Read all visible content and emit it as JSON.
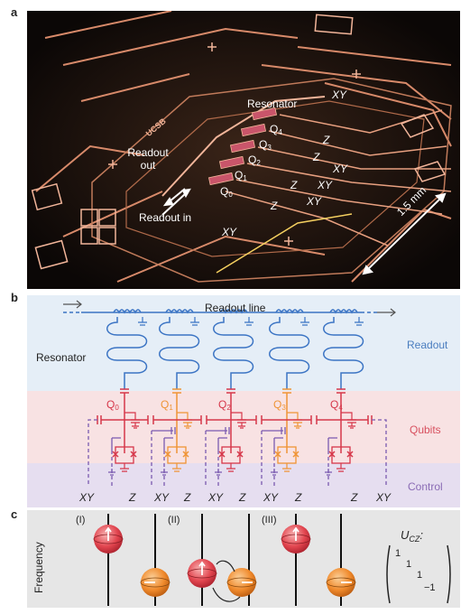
{
  "panels": {
    "a": {
      "label": "a",
      "resonator": "Resonator",
      "xy_top": "XY",
      "qubits": [
        "Q",
        "Q",
        "Q",
        "Q",
        "Q"
      ],
      "qubit_subs": [
        "4",
        "3",
        "2",
        "1",
        "0"
      ],
      "z_labels": [
        "Z",
        "Z",
        "Z",
        "Z"
      ],
      "xy_labels": [
        "XY",
        "XY",
        "XY"
      ],
      "readout_out_1": "Readout",
      "readout_out_2": "out",
      "readout_in": "Readout in",
      "xy_bottom": "XY",
      "scale": "1.5 mm",
      "logo": "UCSB",
      "colors": {
        "background": "#0b0706",
        "trace": "#d88a6a",
        "trace_bright": "#f2b59a"
      }
    },
    "b": {
      "label": "b",
      "readout_line": "Readout line",
      "resonator": "Resonator",
      "bands": [
        "Readout",
        "Qubits",
        "Control"
      ],
      "qubits": [
        "Q",
        "Q",
        "Q",
        "Q",
        "Q"
      ],
      "qubit_subs": [
        "0",
        "1",
        "2",
        "3",
        "4"
      ],
      "bottom_labels": [
        "XY",
        "Z",
        "XY",
        "Z",
        "XY",
        "Z",
        "XY",
        "Z",
        "Z",
        "XY"
      ],
      "colors": {
        "readout_band": "#e5eef7",
        "qubits_band": "#f8e2e3",
        "control_band": "#e6def0",
        "readout_text": "#4a7dbf",
        "qubits_text": "#d8505f",
        "control_text": "#8a6bb5",
        "blue": "#3b74c4",
        "red": "#d6374a",
        "orange": "#ef9436",
        "purple": "#7a5ab0"
      }
    },
    "c": {
      "label": "c",
      "axis": "Frequency",
      "steps": [
        "(I)",
        "(II)",
        "(III)"
      ],
      "ucz": "U",
      "ucz_sub": "CZ",
      "ucz_colon": ":",
      "matrix_entries": [
        "1",
        "1",
        "1",
        "−1"
      ],
      "colors": {
        "background": "#e6e6e6",
        "sphere_red": "#e2454f",
        "sphere_orange": "#f08a2c"
      }
    }
  }
}
